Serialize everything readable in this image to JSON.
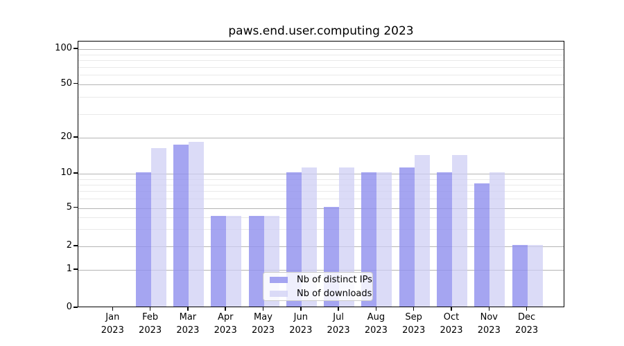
{
  "figure": {
    "title": "paws.end.user.computing 2023"
  },
  "chart_data": {
    "type": "bar",
    "title": "paws.end.user.computing 2023",
    "categories": [
      "Jan",
      "Feb",
      "Mar",
      "Apr",
      "May",
      "Jun",
      "Jul",
      "Aug",
      "Sep",
      "Oct",
      "Nov",
      "Dec"
    ],
    "year_label": "2023",
    "series": [
      {
        "name": "Nb of distinct IPs",
        "color": "rgba(145,145,238,0.82)",
        "values": [
          0,
          10,
          17,
          4,
          4,
          10,
          5,
          10,
          11,
          10,
          8,
          2
        ]
      },
      {
        "name": "Nb of downloads",
        "color": "rgba(205,205,244,0.72)",
        "values": [
          0,
          16,
          18,
          4,
          4,
          11,
          11,
          10,
          14,
          14,
          10,
          2
        ]
      }
    ],
    "y_axis": {
      "scale": "symlog-1-2-5",
      "major_ticks": [
        0,
        1,
        2,
        5,
        10,
        20,
        50,
        100
      ],
      "minor_ticks": [
        3,
        4,
        6,
        7,
        8,
        9,
        30,
        40,
        60,
        70,
        80,
        90
      ],
      "ylim": [
        0,
        115
      ]
    },
    "x_axis": {
      "label_lines": 2
    },
    "grid": true,
    "legend": {
      "position": "lower center",
      "entries": [
        "Nb of distinct IPs",
        "Nb of downloads"
      ]
    }
  },
  "colors": {
    "bar_dark": "rgba(145,145,238,0.82)",
    "bar_light": "rgba(205,205,244,0.72)",
    "grid_major": "#b4b4b4",
    "grid_minor": "#e9e9e9",
    "spine": "#000000"
  }
}
